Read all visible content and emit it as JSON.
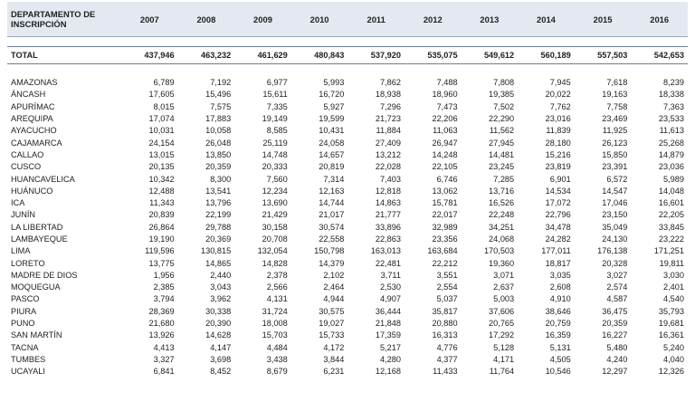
{
  "table": {
    "header": [
      "DEPARTAMENTO DE INSCRIPCIÓN",
      "2007",
      "2008",
      "2009",
      "2010",
      "2011",
      "2012",
      "2013",
      "2014",
      "2015",
      "2016"
    ],
    "total": [
      "TOTAL",
      "437,946",
      "463,232",
      "461,629",
      "480,843",
      "537,920",
      "535,075",
      "549,612",
      "560,189",
      "557,503",
      "542,653"
    ],
    "rows": [
      [
        "AMAZONAS",
        "6,789",
        "7,192",
        "6,977",
        "5,993",
        "7,862",
        "7,488",
        "7,808",
        "7,945",
        "7,618",
        "8,239"
      ],
      [
        "ÁNCASH",
        "17,605",
        "15,496",
        "15,611",
        "16,720",
        "18,938",
        "18,960",
        "19,385",
        "20,022",
        "19,163",
        "18,338"
      ],
      [
        "APURÍMAC",
        "8,015",
        "7,575",
        "7,335",
        "5,927",
        "7,296",
        "7,473",
        "7,502",
        "7,762",
        "7,758",
        "7,363"
      ],
      [
        "AREQUIPA",
        "17,074",
        "17,883",
        "19,149",
        "19,599",
        "21,723",
        "22,206",
        "22,290",
        "23,016",
        "23,469",
        "23,533"
      ],
      [
        "AYACUCHO",
        "10,031",
        "10,058",
        "8,585",
        "10,431",
        "11,884",
        "11,063",
        "11,562",
        "11,839",
        "11,925",
        "11,613"
      ],
      [
        "CAJAMARCA",
        "24,154",
        "26,048",
        "25,119",
        "24,058",
        "27,409",
        "26,947",
        "27,945",
        "28,180",
        "26,123",
        "25,268"
      ],
      [
        "CALLAO",
        "13,015",
        "13,850",
        "14,748",
        "14,657",
        "13,212",
        "14,248",
        "14,481",
        "15,216",
        "15,850",
        "14,879"
      ],
      [
        "CUSCO",
        "20,135",
        "20,359",
        "20,333",
        "20,819",
        "22,028",
        "22,105",
        "23,245",
        "23,819",
        "23,391",
        "23,036"
      ],
      [
        "HUANCAVELICA",
        "10,342",
        "8,300",
        "7,560",
        "7,314",
        "7,403",
        "6,746",
        "7,285",
        "6,901",
        "6,572",
        "5,989"
      ],
      [
        "HUÁNUCO",
        "12,488",
        "13,541",
        "12,234",
        "12,163",
        "12,818",
        "13,062",
        "13,716",
        "14,534",
        "14,547",
        "14,048"
      ],
      [
        "ICA",
        "11,343",
        "13,796",
        "13,690",
        "14,744",
        "14,863",
        "15,781",
        "16,526",
        "17,072",
        "17,046",
        "16,601"
      ],
      [
        "JUNÍN",
        "20,839",
        "22,199",
        "21,429",
        "21,017",
        "21,777",
        "22,017",
        "22,248",
        "22,796",
        "23,150",
        "22,205"
      ],
      [
        "LA LIBERTAD",
        "26,864",
        "29,788",
        "30,158",
        "30,574",
        "33,896",
        "32,989",
        "34,251",
        "34,478",
        "35,049",
        "33,845"
      ],
      [
        "LAMBAYEQUE",
        "19,190",
        "20,369",
        "20,708",
        "22,558",
        "22,863",
        "23,356",
        "24,068",
        "24,282",
        "24,130",
        "23,222"
      ],
      [
        "LIMA",
        "119,596",
        "130,815",
        "132,054",
        "150,798",
        "163,013",
        "163,684",
        "170,503",
        "177,011",
        "176,138",
        "171,251"
      ],
      [
        "LORETO",
        "13,775",
        "14,865",
        "14,828",
        "14,379",
        "22,481",
        "22,212",
        "19,360",
        "18,817",
        "20,328",
        "19,811"
      ],
      [
        "MADRE DE DIOS",
        "1,956",
        "2,440",
        "2,378",
        "2,102",
        "3,711",
        "3,551",
        "3,071",
        "3,035",
        "3,027",
        "3,030"
      ],
      [
        "MOQUEGUA",
        "2,385",
        "3,043",
        "2,566",
        "2,464",
        "2,530",
        "2,554",
        "2,637",
        "2,608",
        "2,574",
        "2,401"
      ],
      [
        "PASCO",
        "3,794",
        "3,962",
        "4,131",
        "4,944",
        "4,907",
        "5,037",
        "5,003",
        "4,910",
        "4,587",
        "4,540"
      ],
      [
        "PIURA",
        "28,369",
        "30,338",
        "31,724",
        "30,575",
        "36,444",
        "35,817",
        "37,606",
        "38,646",
        "36,475",
        "35,793"
      ],
      [
        "PUNO",
        "21,680",
        "20,390",
        "18,008",
        "19,027",
        "21,848",
        "20,880",
        "20,765",
        "20,759",
        "20,359",
        "19,681"
      ],
      [
        "SAN MARTÍN",
        "13,926",
        "14,628",
        "15,703",
        "15,733",
        "17,359",
        "16,313",
        "17,292",
        "16,359",
        "16,227",
        "16,361"
      ],
      [
        "TACNA",
        "4,413",
        "4,147",
        "4,484",
        "4,172",
        "5,217",
        "4,776",
        "5,128",
        "5,131",
        "5,480",
        "5,240"
      ],
      [
        "TUMBES",
        "3,327",
        "3,698",
        "3,438",
        "3,844",
        "4,280",
        "4,377",
        "4,171",
        "4,505",
        "4,240",
        "4,040"
      ],
      [
        "UCAYALI",
        "6,841",
        "8,452",
        "8,679",
        "6,231",
        "12,168",
        "11,433",
        "11,764",
        "10,546",
        "12,297",
        "12,326"
      ]
    ]
  }
}
